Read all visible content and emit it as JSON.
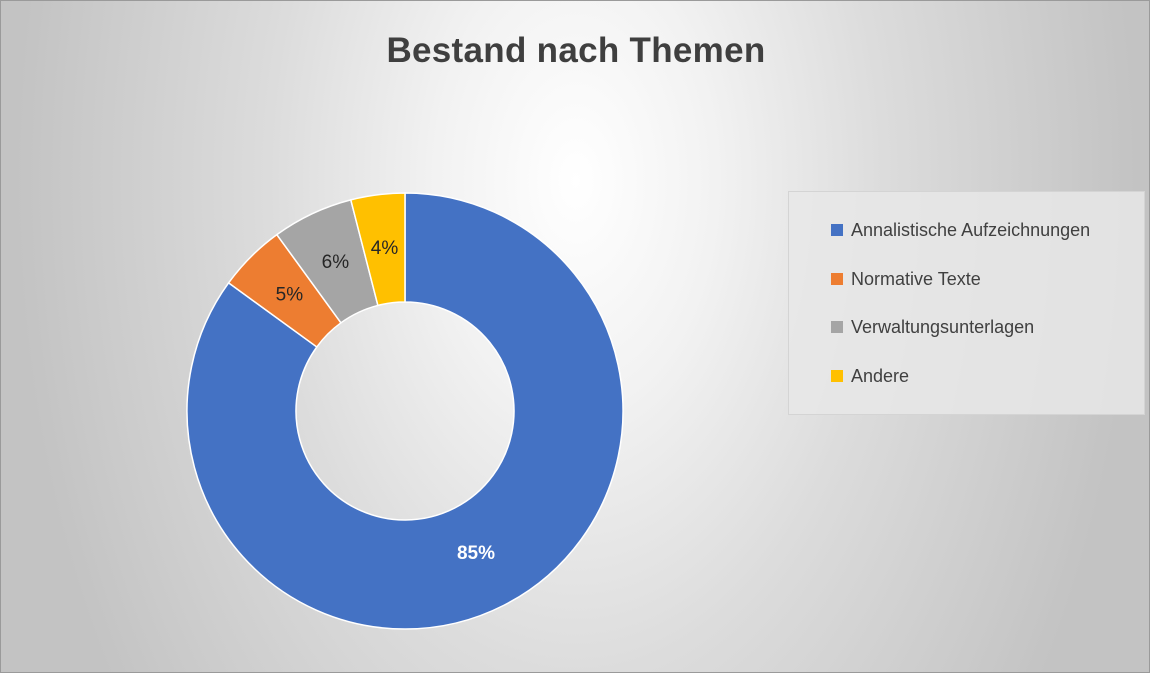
{
  "chart_data": {
    "type": "pie",
    "variant": "donut",
    "title": "Bestand nach Themen",
    "categories": [
      "Annalistische Aufzeichnungen",
      "Normative Texte",
      "Verwaltungsunterlagen",
      "Andere"
    ],
    "values": [
      85,
      5,
      6,
      4
    ],
    "labels": [
      "85%",
      "5%",
      "6%",
      "4%"
    ],
    "colors": [
      "#4472C4",
      "#ED7D31",
      "#A5A5A5",
      "#FFC000"
    ],
    "label_colors": [
      "#ffffff",
      "#262626",
      "#262626",
      "#262626"
    ],
    "legend": "right"
  }
}
